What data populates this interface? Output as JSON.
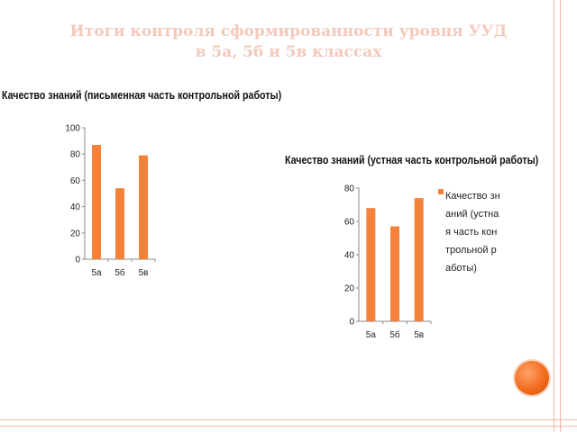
{
  "slide": {
    "title_line1": "Итоги контроля сформированности уровня УУД",
    "title_line2": "в 5а, 5б и 5в классах"
  },
  "colors": {
    "bar": "#f5823b",
    "title": "#f3c9bc",
    "border": "#f2b8a8",
    "accent_circle": "#f26b1d"
  },
  "chart_data": [
    {
      "type": "bar",
      "title": "Качество знаний (письменная часть контрольной работы)",
      "categories": [
        "5а",
        "5б",
        "5в"
      ],
      "values": [
        87,
        54,
        79
      ],
      "ylim": [
        0,
        100
      ],
      "yticks": [
        0,
        20,
        40,
        60,
        80,
        100
      ],
      "grid": false,
      "legend": false
    },
    {
      "type": "bar",
      "title": "Качество знаний (устная часть контрольной работы)",
      "categories": [
        "5а",
        "5б",
        "5в"
      ],
      "series": [
        {
          "name": "Качество знаний (устная часть контрольной работы)",
          "values": [
            68,
            57,
            74
          ]
        }
      ],
      "ylim": [
        0,
        80
      ],
      "yticks": [
        0,
        20,
        40,
        60,
        80
      ],
      "grid": false,
      "legend": "right"
    }
  ]
}
